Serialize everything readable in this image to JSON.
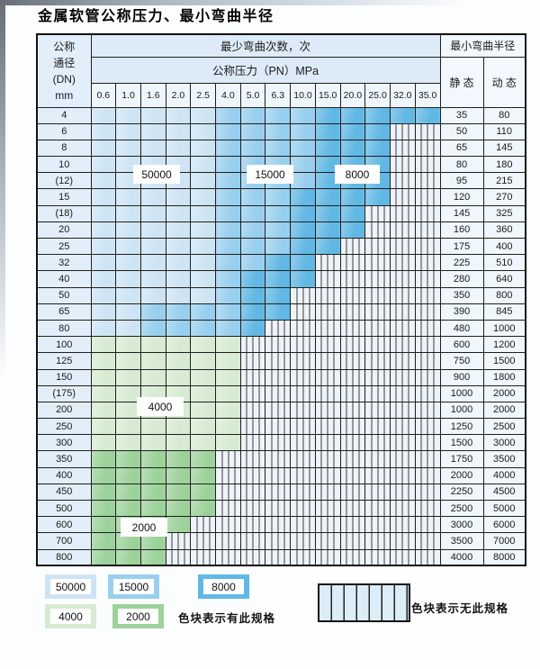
{
  "page": {
    "title": "金属软管公称压力、最小弯曲半径",
    "background": "#fcfdfe"
  },
  "table": {
    "header": {
      "dn_lines": [
        "公称",
        "通径",
        "(DN)",
        "mm"
      ],
      "min_bend_cycles_label": "最少弯曲次数，次",
      "nominal_pressure_label": "公称压力（PN）MPa",
      "min_bend_radius_label": "最小弯曲半径",
      "static_label": "静 态",
      "dynamic_label": "动 态",
      "pressure_columns": [
        "0.6",
        "1.0",
        "1.6",
        "2.0",
        "2.5",
        "4.0",
        "5.0",
        "6.3",
        "10.0",
        "15.0",
        "20.0",
        "25.0",
        "32.0",
        "35.0"
      ]
    },
    "zones": {
      "L": {
        "cycles": "50000",
        "color": "#cee4f4"
      },
      "M": {
        "cycles": "15000",
        "color": "#99cfee"
      },
      "D": {
        "cycles": "8000",
        "color": "#62b8e4"
      },
      "g": {
        "cycles": "4000",
        "color": "#d7ebd2"
      },
      "G": {
        "cycles": "2000",
        "color": "#9dd29b"
      },
      "S": {
        "cycles": "",
        "meaning": "无此规格",
        "stripe_bg": "#edf3f9",
        "stripe_line": "#3c3c3c"
      }
    },
    "rows": [
      {
        "dn": "4",
        "zones": "LLLLLMMMMDDDDD",
        "static": "35",
        "dynamic": "80"
      },
      {
        "dn": "6",
        "zones": "LLLLLMMMMDDDSS",
        "static": "50",
        "dynamic": "110"
      },
      {
        "dn": "8",
        "zones": "LLLLLMMMMDDDSS",
        "static": "65",
        "dynamic": "145"
      },
      {
        "dn": "10",
        "zones": "LLLLLMMMMDDDSS",
        "static": "80",
        "dynamic": "180"
      },
      {
        "dn": "(12)",
        "zones": "LLLLLMMMMDDDSS",
        "static": "95",
        "dynamic": "215"
      },
      {
        "dn": "15",
        "zones": "LLLLLMMMDDDDSS",
        "static": "120",
        "dynamic": "270"
      },
      {
        "dn": "(18)",
        "zones": "LLLLLMMMDDDSSS",
        "static": "145",
        "dynamic": "325"
      },
      {
        "dn": "20",
        "zones": "LLLLLMMMDDDSSS",
        "static": "160",
        "dynamic": "360"
      },
      {
        "dn": "25",
        "zones": "LLLLLMMMDDSSSS",
        "static": "175",
        "dynamic": "400"
      },
      {
        "dn": "32",
        "zones": "LLLLLMMDDSSSSS",
        "static": "225",
        "dynamic": "510"
      },
      {
        "dn": "40",
        "zones": "LLLLLMDDDSSSSS",
        "static": "280",
        "dynamic": "640"
      },
      {
        "dn": "50",
        "zones": "LLLLLMDDSSSSSS",
        "static": "350",
        "dynamic": "800"
      },
      {
        "dn": "65",
        "zones": "LLMMMMDDSSSSSS",
        "static": "390",
        "dynamic": "845"
      },
      {
        "dn": "80",
        "zones": "LLMMMMDSSSSSSS",
        "static": "480",
        "dynamic": "1000"
      },
      {
        "dn": "100",
        "zones": "ggggggSSSSSSSS",
        "static": "600",
        "dynamic": "1200"
      },
      {
        "dn": "125",
        "zones": "ggggggSSSSSSSS",
        "static": "750",
        "dynamic": "1500"
      },
      {
        "dn": "150",
        "zones": "ggggggSSSSSSSS",
        "static": "900",
        "dynamic": "1800"
      },
      {
        "dn": "(175)",
        "zones": "ggggggSSSSSSSS",
        "static": "1000",
        "dynamic": "2000"
      },
      {
        "dn": "200",
        "zones": "ggggggSSSSSSSS",
        "static": "1000",
        "dynamic": "2000"
      },
      {
        "dn": "250",
        "zones": "ggggggSSSSSSSS",
        "static": "1250",
        "dynamic": "2500"
      },
      {
        "dn": "300",
        "zones": "ggggggSSSSSSSS",
        "static": "1500",
        "dynamic": "3000"
      },
      {
        "dn": "350",
        "zones": "GGGGGSSSSSSSSS",
        "static": "1750",
        "dynamic": "3500"
      },
      {
        "dn": "400",
        "zones": "GGGGGSSSSSSSSS",
        "static": "2000",
        "dynamic": "4000"
      },
      {
        "dn": "450",
        "zones": "GGGGGSSSSSSSSS",
        "static": "2250",
        "dynamic": "4500"
      },
      {
        "dn": "500",
        "zones": "GGGGGSSSSSSSSS",
        "static": "2500",
        "dynamic": "5000"
      },
      {
        "dn": "600",
        "zones": "GGGGSSSSSSSSSS",
        "static": "3000",
        "dynamic": "6000"
      },
      {
        "dn": "700",
        "zones": "GGGSSSSSSSSSSS",
        "static": "3500",
        "dynamic": "7000"
      },
      {
        "dn": "800",
        "zones": "GGGSSSSSSSSSSS",
        "static": "4000",
        "dynamic": "8000"
      }
    ]
  },
  "legend": {
    "available_values": [
      "50000",
      "15000",
      "8000",
      "4000",
      "2000"
    ],
    "available_text": "色块表示有此规格",
    "unavailable_text": "色块表示无此规格"
  }
}
